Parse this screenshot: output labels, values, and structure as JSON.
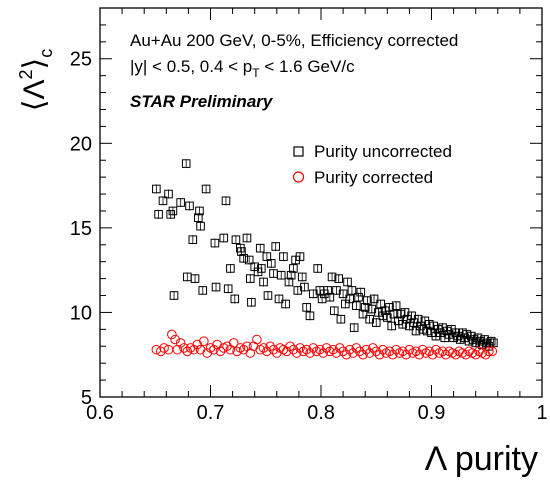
{
  "chart_data": {
    "type": "scatter",
    "xlabel": "Λ purity",
    "ylabel_main": "⟨Λ",
    "ylabel_sup": "2",
    "ylabel_close": "⟩",
    "ylabel_sub": "c",
    "xlim": [
      0.6,
      1.0
    ],
    "ylim": [
      5,
      28
    ],
    "x_ticks": [
      0.6,
      0.7,
      0.8,
      0.9,
      1.0
    ],
    "x_tick_labels": [
      "0.6",
      "0.7",
      "0.8",
      "0.9",
      "1"
    ],
    "y_ticks": [
      5,
      10,
      15,
      20,
      25
    ],
    "y_tick_labels": [
      "5",
      "10",
      "15",
      "20",
      "25"
    ],
    "grid": false,
    "legend_position": "right-middle",
    "annotations": {
      "line1": "Au+Au 200 GeV, 0-5%, Efficiency corrected",
      "line2_pre": "|y| < 0.5, 0.4 < p",
      "line2_sub": "T",
      "line2_post": " < 1.6 GeV/c",
      "line3": "STAR Preliminary"
    },
    "series": [
      {
        "name": "Purity uncorrected",
        "marker": "open-square",
        "color": "#000000",
        "points": [
          [
            0.651,
            17.3
          ],
          [
            0.653,
            15.8
          ],
          [
            0.657,
            16.6
          ],
          [
            0.662,
            17.0
          ],
          [
            0.664,
            15.8
          ],
          [
            0.666,
            16.0
          ],
          [
            0.667,
            11.0
          ],
          [
            0.673,
            16.5
          ],
          [
            0.678,
            18.8
          ],
          [
            0.679,
            12.1
          ],
          [
            0.681,
            16.3
          ],
          [
            0.684,
            14.3
          ],
          [
            0.686,
            12.0
          ],
          [
            0.689,
            15.6
          ],
          [
            0.69,
            16.0
          ],
          [
            0.691,
            15.1
          ],
          [
            0.693,
            11.3
          ],
          [
            0.696,
            17.3
          ],
          [
            0.704,
            14.1
          ],
          [
            0.705,
            11.5
          ],
          [
            0.712,
            14.4
          ],
          [
            0.714,
            16.6
          ],
          [
            0.716,
            11.4
          ],
          [
            0.718,
            12.6
          ],
          [
            0.722,
            10.8
          ],
          [
            0.723,
            14.3
          ],
          [
            0.727,
            13.8
          ],
          [
            0.728,
            13.6
          ],
          [
            0.73,
            13.2
          ],
          [
            0.733,
            14.4
          ],
          [
            0.735,
            13.1
          ],
          [
            0.736,
            12.0
          ],
          [
            0.737,
            10.6
          ],
          [
            0.74,
            12.7
          ],
          [
            0.743,
            12.4
          ],
          [
            0.745,
            13.8
          ],
          [
            0.746,
            12.6
          ],
          [
            0.748,
            11.8
          ],
          [
            0.751,
            13.3
          ],
          [
            0.752,
            11.0
          ],
          [
            0.755,
            12.9
          ],
          [
            0.757,
            12.3
          ],
          [
            0.759,
            13.9
          ],
          [
            0.762,
            10.8
          ],
          [
            0.764,
            12.2
          ],
          [
            0.766,
            13.3
          ],
          [
            0.768,
            10.5
          ],
          [
            0.771,
            11.8
          ],
          [
            0.773,
            12.2
          ],
          [
            0.775,
            12.6
          ],
          [
            0.777,
            13.1
          ],
          [
            0.779,
            11.3
          ],
          [
            0.781,
            13.3
          ],
          [
            0.783,
            12.1
          ],
          [
            0.785,
            11.5
          ],
          [
            0.787,
            10.3
          ],
          [
            0.79,
            9.8
          ],
          [
            0.793,
            11.1
          ],
          [
            0.797,
            12.6
          ],
          [
            0.799,
            11.3
          ],
          [
            0.801,
            10.8
          ],
          [
            0.803,
            11.1
          ],
          [
            0.806,
            11.3
          ],
          [
            0.808,
            10.9
          ],
          [
            0.81,
            12.1
          ],
          [
            0.812,
            10.1
          ],
          [
            0.814,
            11.3
          ],
          [
            0.816,
            12.0
          ],
          [
            0.818,
            9.6
          ],
          [
            0.82,
            11.1
          ],
          [
            0.822,
            10.5
          ],
          [
            0.824,
            11.8
          ],
          [
            0.826,
            10.8
          ],
          [
            0.828,
            11.3
          ],
          [
            0.83,
            9.1
          ],
          [
            0.832,
            10.4
          ],
          [
            0.834,
            10.9
          ],
          [
            0.836,
            11.2
          ],
          [
            0.838,
            9.9
          ],
          [
            0.84,
            10.3
          ],
          [
            0.842,
            10.7
          ],
          [
            0.844,
            9.6
          ],
          [
            0.846,
            10.2
          ],
          [
            0.848,
            10.8
          ],
          [
            0.85,
            9.4
          ],
          [
            0.852,
            10.0
          ],
          [
            0.854,
            10.5
          ],
          [
            0.856,
            9.8
          ],
          [
            0.858,
            10.1
          ],
          [
            0.86,
            9.7
          ],
          [
            0.862,
            10.3
          ],
          [
            0.864,
            9.2
          ],
          [
            0.866,
            9.9
          ],
          [
            0.868,
            10.4
          ],
          [
            0.87,
            9.5
          ],
          [
            0.872,
            9.9
          ],
          [
            0.874,
            9.3
          ],
          [
            0.876,
            10.0
          ],
          [
            0.878,
            9.6
          ],
          [
            0.88,
            9.2
          ],
          [
            0.882,
            9.8
          ],
          [
            0.884,
            9.4
          ],
          [
            0.886,
            8.9
          ],
          [
            0.888,
            9.6
          ],
          [
            0.89,
            9.2
          ],
          [
            0.892,
            9.0
          ],
          [
            0.894,
            9.5
          ],
          [
            0.896,
            8.9
          ],
          [
            0.898,
            9.3
          ],
          [
            0.9,
            8.8
          ],
          [
            0.902,
            9.2
          ],
          [
            0.904,
            8.6
          ],
          [
            0.906,
            9.0
          ],
          [
            0.908,
            8.8
          ],
          [
            0.91,
            9.1
          ],
          [
            0.912,
            8.5
          ],
          [
            0.914,
            8.9
          ],
          [
            0.916,
            8.7
          ],
          [
            0.918,
            9.0
          ],
          [
            0.92,
            8.5
          ],
          [
            0.922,
            8.8
          ],
          [
            0.924,
            8.6
          ],
          [
            0.926,
            8.4
          ],
          [
            0.928,
            8.8
          ],
          [
            0.93,
            8.5
          ],
          [
            0.932,
            8.7
          ],
          [
            0.934,
            8.3
          ],
          [
            0.936,
            8.6
          ],
          [
            0.938,
            8.4
          ],
          [
            0.94,
            8.2
          ],
          [
            0.942,
            8.5
          ],
          [
            0.944,
            8.3
          ],
          [
            0.946,
            8.1
          ],
          [
            0.948,
            8.4
          ],
          [
            0.95,
            8.2
          ],
          [
            0.952,
            8.0
          ],
          [
            0.954,
            8.3
          ],
          [
            0.956,
            8.2
          ]
        ]
      },
      {
        "name": "Purity corrected",
        "marker": "open-circle",
        "color": "#ff0000",
        "points": [
          [
            0.651,
            7.8
          ],
          [
            0.655,
            7.7
          ],
          [
            0.658,
            7.9
          ],
          [
            0.662,
            7.8
          ],
          [
            0.665,
            8.7
          ],
          [
            0.668,
            8.4
          ],
          [
            0.67,
            7.8
          ],
          [
            0.673,
            8.2
          ],
          [
            0.676,
            7.9
          ],
          [
            0.679,
            7.7
          ],
          [
            0.682,
            7.9
          ],
          [
            0.685,
            7.8
          ],
          [
            0.688,
            8.1
          ],
          [
            0.691,
            7.8
          ],
          [
            0.694,
            8.3
          ],
          [
            0.697,
            7.6
          ],
          [
            0.7,
            7.9
          ],
          [
            0.703,
            7.8
          ],
          [
            0.706,
            8.1
          ],
          [
            0.709,
            7.7
          ],
          [
            0.712,
            7.9
          ],
          [
            0.715,
            8.0
          ],
          [
            0.718,
            7.8
          ],
          [
            0.721,
            8.2
          ],
          [
            0.724,
            7.7
          ],
          [
            0.727,
            7.9
          ],
          [
            0.73,
            7.8
          ],
          [
            0.733,
            8.0
          ],
          [
            0.736,
            7.6
          ],
          [
            0.739,
            8.0
          ],
          [
            0.742,
            8.4
          ],
          [
            0.745,
            7.8
          ],
          [
            0.748,
            7.9
          ],
          [
            0.751,
            7.7
          ],
          [
            0.754,
            8.0
          ],
          [
            0.757,
            7.8
          ],
          [
            0.76,
            7.6
          ],
          [
            0.763,
            7.9
          ],
          [
            0.766,
            7.8
          ],
          [
            0.769,
            7.7
          ],
          [
            0.772,
            8.0
          ],
          [
            0.775,
            7.8
          ],
          [
            0.778,
            7.6
          ],
          [
            0.781,
            7.9
          ],
          [
            0.784,
            7.7
          ],
          [
            0.787,
            7.8
          ],
          [
            0.79,
            7.6
          ],
          [
            0.793,
            7.9
          ],
          [
            0.796,
            7.7
          ],
          [
            0.799,
            7.8
          ],
          [
            0.802,
            7.6
          ],
          [
            0.805,
            7.9
          ],
          [
            0.808,
            7.7
          ],
          [
            0.811,
            7.8
          ],
          [
            0.814,
            7.6
          ],
          [
            0.817,
            7.9
          ],
          [
            0.82,
            7.7
          ],
          [
            0.823,
            7.5
          ],
          [
            0.826,
            7.8
          ],
          [
            0.829,
            7.6
          ],
          [
            0.832,
            7.9
          ],
          [
            0.835,
            7.7
          ],
          [
            0.838,
            7.5
          ],
          [
            0.841,
            7.8
          ],
          [
            0.844,
            7.6
          ],
          [
            0.847,
            7.9
          ],
          [
            0.85,
            7.7
          ],
          [
            0.853,
            7.5
          ],
          [
            0.856,
            7.8
          ],
          [
            0.859,
            7.6
          ],
          [
            0.862,
            7.7
          ],
          [
            0.865,
            7.5
          ],
          [
            0.868,
            7.8
          ],
          [
            0.871,
            7.6
          ],
          [
            0.874,
            7.7
          ],
          [
            0.877,
            7.5
          ],
          [
            0.88,
            7.8
          ],
          [
            0.883,
            7.6
          ],
          [
            0.886,
            7.7
          ],
          [
            0.889,
            7.5
          ],
          [
            0.892,
            7.8
          ],
          [
            0.895,
            7.6
          ],
          [
            0.898,
            7.7
          ],
          [
            0.901,
            7.5
          ],
          [
            0.904,
            7.8
          ],
          [
            0.907,
            7.6
          ],
          [
            0.91,
            7.7
          ],
          [
            0.913,
            7.5
          ],
          [
            0.916,
            7.7
          ],
          [
            0.919,
            7.6
          ],
          [
            0.922,
            7.5
          ],
          [
            0.925,
            7.7
          ],
          [
            0.928,
            7.6
          ],
          [
            0.931,
            7.5
          ],
          [
            0.934,
            7.7
          ],
          [
            0.937,
            7.6
          ],
          [
            0.94,
            7.5
          ],
          [
            0.943,
            7.7
          ],
          [
            0.946,
            7.6
          ],
          [
            0.949,
            7.5
          ],
          [
            0.952,
            7.7
          ],
          [
            0.955,
            7.7
          ]
        ]
      }
    ]
  }
}
